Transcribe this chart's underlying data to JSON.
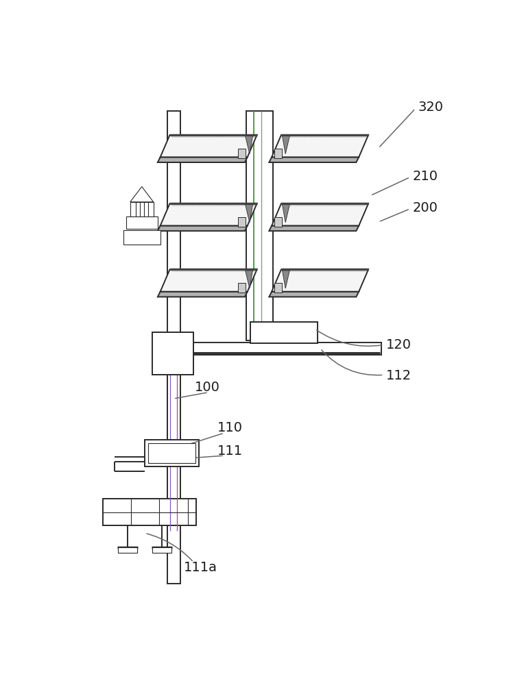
{
  "bg": "#ffffff",
  "lc": "#2a2a2a",
  "lw": 1.4,
  "lwt": 0.8,
  "panel_fill": "#f5f5f5",
  "panel_edge_dark": "#555555",
  "panel_side_fill": "#b0b0b0",
  "green1": "#3a9a3a",
  "green2": "#5aba5a",
  "purple": "#8855bb"
}
